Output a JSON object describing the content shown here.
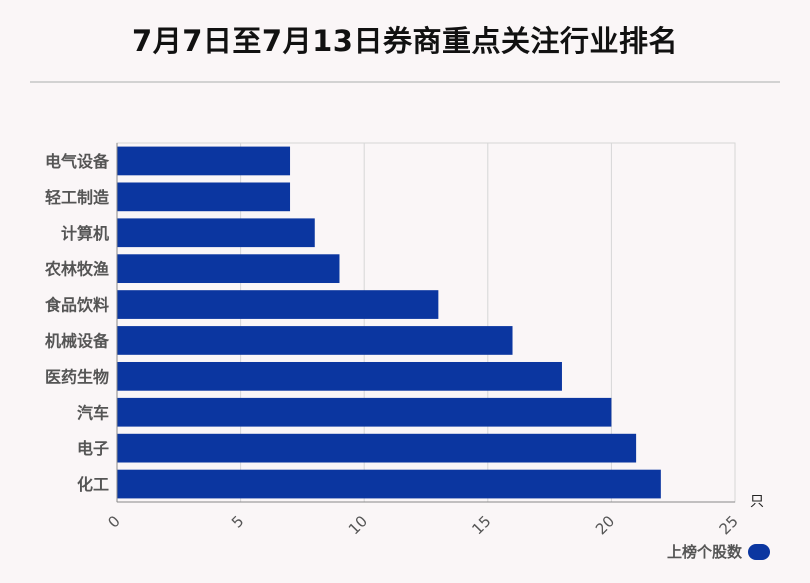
{
  "title": "7月7日至7月13日券商重点关注行业排名",
  "chart_data": {
    "type": "bar",
    "orientation": "horizontal",
    "categories": [
      "电气设备",
      "轻工制造",
      "计算机",
      "农林牧渔",
      "食品饮料",
      "机械设备",
      "医药生物",
      "汽车",
      "电子",
      "化工"
    ],
    "series": [
      {
        "name": "上榜个股数",
        "values": [
          7,
          7,
          8,
          9,
          13,
          16,
          18,
          20,
          21,
          22
        ]
      }
    ],
    "xlim": [
      0,
      25
    ],
    "xticks": [
      "0",
      "5",
      "10",
      "15",
      "20",
      "25"
    ],
    "xunit": "只",
    "grid": true,
    "legend_position": "bottom-right",
    "bar_color": "#0b36a0"
  }
}
